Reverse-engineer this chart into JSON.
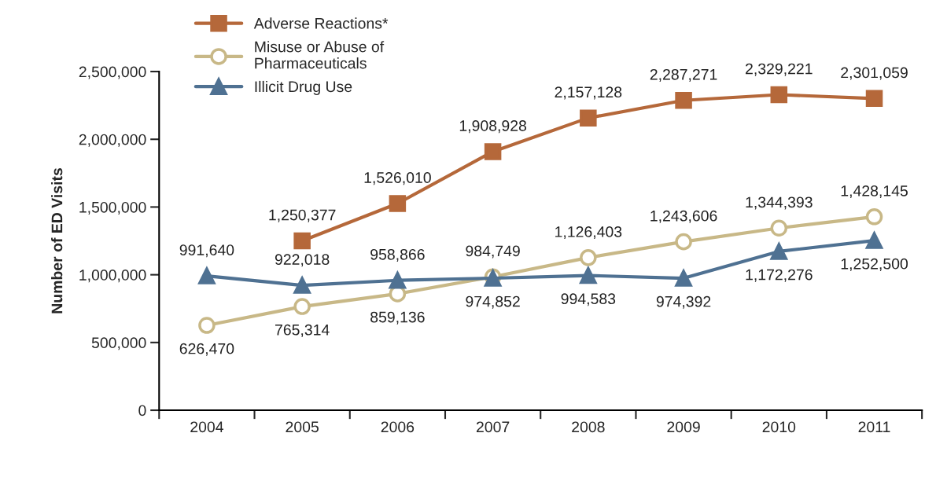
{
  "chart_data": {
    "type": "line",
    "ylabel": "Number of ED Visits",
    "categories": [
      "2004",
      "2005",
      "2006",
      "2007",
      "2008",
      "2009",
      "2010",
      "2011"
    ],
    "ylim": [
      0,
      2500000
    ],
    "yticks": [
      0,
      {
        "value": 500000,
        "label": "500,000"
      },
      {
        "value": 1000000,
        "label": "1,000,000"
      },
      {
        "value": 1500000,
        "label": "1,500,000"
      },
      {
        "value": 2000000,
        "label": "2,000,000"
      },
      {
        "value": 2500000,
        "label": "2,500,000"
      }
    ],
    "series": [
      {
        "name": "Adverse Reactions*",
        "color": "#b5683a",
        "marker": "square",
        "values": [
          null,
          1250377,
          1526010,
          1908928,
          2157128,
          2287271,
          2329221,
          2301059
        ],
        "value_labels": [
          null,
          "1,250,377",
          "1,526,010",
          "1,908,928",
          "2,157,128",
          "2,287,271",
          "2,329,221",
          "2,301,059"
        ]
      },
      {
        "name": "Misuse or Abuse of\nPharmaceuticals",
        "color": "#c8b887",
        "marker": "circle",
        "values": [
          626470,
          765314,
          859136,
          984749,
          1126403,
          1243606,
          1344393,
          1428145
        ],
        "value_labels": [
          "626,470",
          "765,314",
          "859,136",
          "984,749",
          "1,126,403",
          "1,243,606",
          "1,344,393",
          "1,428,145"
        ]
      },
      {
        "name": "Illicit Drug Use",
        "color": "#4f7192",
        "marker": "triangle",
        "values": [
          991640,
          922018,
          958866,
          974852,
          994583,
          974392,
          1172276,
          1252500
        ],
        "value_labels": [
          "991,640",
          "922,018",
          "958,866",
          "974,852",
          "994,583",
          "974,392",
          "1,172,276",
          "1,252,500"
        ]
      }
    ],
    "grid": false,
    "legend": "top left"
  }
}
